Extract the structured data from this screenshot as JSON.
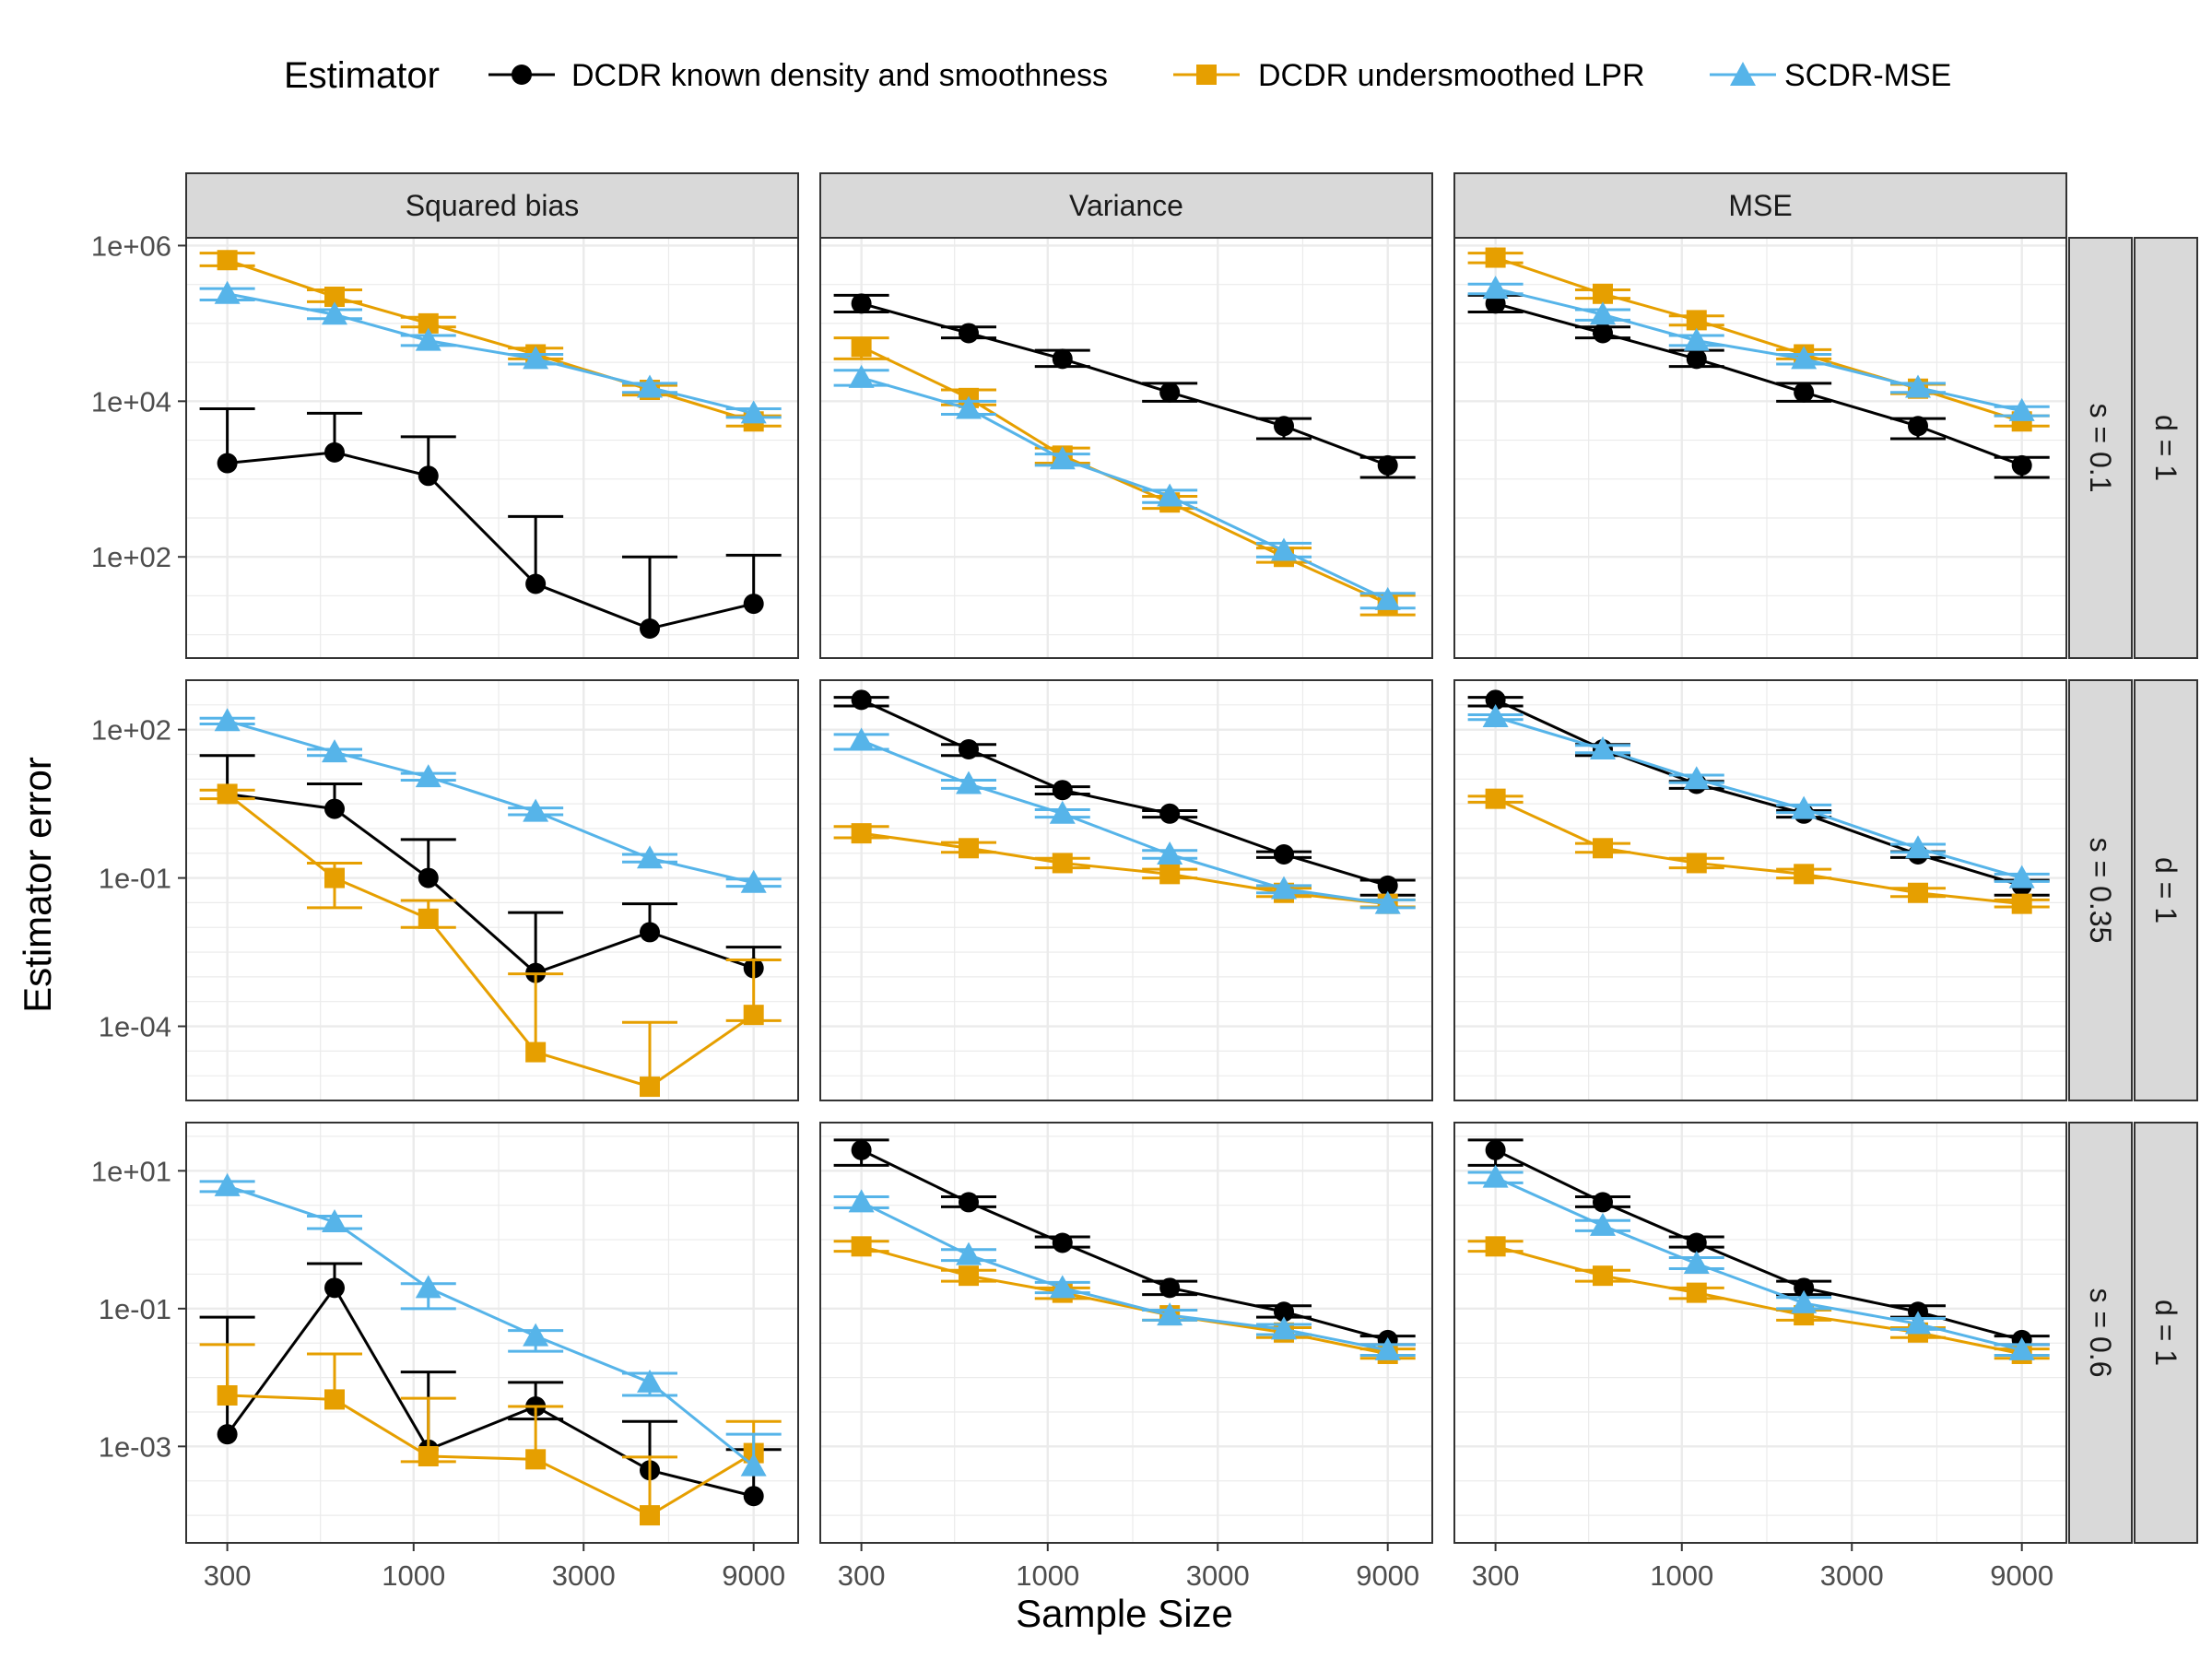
{
  "legend": {
    "title": "Estimator",
    "entries": [
      {
        "name": "DCDR known density and smoothness",
        "color": "#000000",
        "shape": "circle"
      },
      {
        "name": "DCDR undersmoothed LPR",
        "color": "#E69F00",
        "shape": "square"
      },
      {
        "name": "SCDR-MSE",
        "color": "#56B4E9",
        "shape": "triangle"
      }
    ]
  },
  "axes": {
    "xlabel": "Sample Size",
    "ylabel": "Estimator error",
    "x_ticks": [
      300,
      1000,
      3000,
      9000
    ],
    "x_tick_labels": [
      "300",
      "1000",
      "3000",
      "9000"
    ]
  },
  "chart_data": {
    "type": "line",
    "x_scale": "log10",
    "y_scale": "log10",
    "x": [
      300,
      600,
      1100,
      2200,
      4600,
      9000
    ],
    "xlim": [
      230,
      12000
    ],
    "columns": [
      "Squared bias",
      "Variance",
      "MSE"
    ],
    "rows": [
      {
        "label_s": "s = 0.1",
        "label_d": "d = 1",
        "ylim_log10": [
          0.7,
          6.1
        ],
        "y_ticks": [
          100.0,
          10000.0,
          1000000.0
        ],
        "y_tick_labels": [
          "1e+02",
          "1e+04",
          "1e+06"
        ]
      },
      {
        "label_s": "s = 0.35",
        "label_d": "d = 1",
        "ylim_log10": [
          -5.5,
          3.0
        ],
        "y_ticks": [
          0.0001,
          0.1,
          100.0
        ],
        "y_tick_labels": [
          "1e-04",
          "1e-01",
          "1e+02"
        ]
      },
      {
        "label_s": "s = 0.6",
        "label_d": "d = 1",
        "ylim_log10": [
          -4.4,
          1.7
        ],
        "y_ticks": [
          0.001,
          0.1,
          10.0
        ],
        "y_tick_labels": [
          "1e-03",
          "1e-01",
          "1e+01"
        ]
      }
    ],
    "panels": [
      {
        "row": 0,
        "col": 0,
        "series": [
          {
            "name": "DCDR known density and smoothness",
            "values": [
              1600,
              2200,
              1100,
              45,
              12,
              25
            ],
            "upper": [
              8000,
              7000,
              3500,
              330,
              100,
              105
            ],
            "lower": [
              null,
              null,
              null,
              null,
              null,
              null
            ]
          },
          {
            "name": "DCDR undersmoothed LPR",
            "values": [
              650000,
              220000,
              100000,
              40000,
              14000,
              5500
            ],
            "upper": [
              800000,
              270000,
              120000,
              48000,
              16000,
              6500
            ],
            "lower": [
              550000,
              190000,
              90000,
              35000,
              12000,
              4800
            ]
          },
          {
            "name": "SCDR-MSE",
            "values": [
              240000,
              130000,
              60000,
              35000,
              15000,
              7000
            ],
            "upper": [
              280000,
              150000,
              70000,
              40000,
              17000,
              8000
            ],
            "lower": [
              200000,
              115000,
              52000,
              30000,
              13000,
              6200
            ]
          }
        ]
      },
      {
        "row": 0,
        "col": 1,
        "series": [
          {
            "name": "DCDR known density and smoothness",
            "values": [
              180000,
              75000,
              35000,
              13000,
              4800,
              1500
            ],
            "upper": [
              230000,
              90000,
              45000,
              17000,
              6000,
              1900
            ],
            "lower": [
              140000,
              65000,
              28000,
              10000,
              3300,
              1050
            ]
          },
          {
            "name": "DCDR undersmoothed LPR",
            "values": [
              50000,
              11000,
              2000,
              500,
              100,
              25
            ],
            "upper": [
              65000,
              14000,
              2500,
              600,
              130,
              32
            ],
            "lower": [
              35000,
              9000,
              1600,
              420,
              85,
              18
            ]
          },
          {
            "name": "SCDR-MSE",
            "values": [
              20000,
              8000,
              1800,
              600,
              120,
              28
            ],
            "upper": [
              25000,
              10000,
              2100,
              720,
              150,
              34
            ],
            "lower": [
              16000,
              6800,
              1500,
              500,
              100,
              22
            ]
          }
        ]
      },
      {
        "row": 0,
        "col": 2,
        "series": [
          {
            "name": "DCDR known density and smoothness",
            "values": [
              180000,
              75000,
              35000,
              13000,
              4800,
              1500
            ],
            "upper": [
              230000,
              90000,
              45000,
              17000,
              6000,
              1900
            ],
            "lower": [
              140000,
              65000,
              28000,
              10000,
              3300,
              1050
            ]
          },
          {
            "name": "DCDR undersmoothed LPR",
            "values": [
              700000,
              240000,
              110000,
              40000,
              14500,
              5500
            ],
            "upper": [
              800000,
              270000,
              125000,
              46000,
              16500,
              6500
            ],
            "lower": [
              600000,
              210000,
              95000,
              35000,
              12500,
              4800
            ]
          },
          {
            "name": "SCDR-MSE",
            "values": [
              280000,
              130000,
              60000,
              35000,
              15000,
              7500
            ],
            "upper": [
              320000,
              150000,
              70000,
              40000,
              17000,
              8500
            ],
            "lower": [
              240000,
              110000,
              52000,
              30000,
              13000,
              6500
            ]
          }
        ]
      },
      {
        "row": 1,
        "col": 0,
        "series": [
          {
            "name": "DCDR known density and smoothness",
            "values": [
              5,
              2.5,
              0.1,
              0.0012,
              0.008,
              0.0015
            ],
            "upper": [
              30,
              8,
              0.6,
              0.02,
              0.03,
              0.004
            ],
            "lower": [
              null,
              null,
              null,
              null,
              null,
              null
            ]
          },
          {
            "name": "DCDR undersmoothed LPR",
            "values": [
              5,
              0.1,
              0.015,
              3e-05,
              6e-06,
              0.00017
            ],
            "upper": [
              6,
              0.2,
              0.035,
              0.00115,
              0.00012,
              0.0022
            ],
            "lower": [
              4,
              0.025,
              0.01,
              null,
              null,
              0.00013
            ]
          },
          {
            "name": "SCDR-MSE",
            "values": [
              150,
              35,
              11,
              2.2,
              0.25,
              0.08
            ],
            "upper": [
              170,
              40,
              13,
              2.6,
              0.3,
              0.095
            ],
            "lower": [
              130,
              30,
              9.5,
              1.9,
              0.21,
              0.068
            ]
          }
        ]
      },
      {
        "row": 1,
        "col": 1,
        "series": [
          {
            "name": "DCDR known density and smoothness",
            "values": [
              400,
              40,
              6,
              2,
              0.3,
              0.07
            ],
            "upper": [
              450,
              50,
              7,
              2.3,
              0.34,
              0.09
            ],
            "lower": [
              300,
              30,
              5,
              1.7,
              0.26,
              0.045
            ]
          },
          {
            "name": "DCDR undersmoothed LPR",
            "values": [
              0.8,
              0.4,
              0.2,
              0.12,
              0.05,
              0.03
            ],
            "upper": [
              1.1,
              0.52,
              0.25,
              0.15,
              0.062,
              0.036
            ],
            "lower": [
              0.65,
              0.33,
              0.16,
              0.1,
              0.042,
              0.026
            ]
          },
          {
            "name": "SCDR-MSE",
            "values": [
              60,
              8,
              2,
              0.3,
              0.06,
              0.03
            ],
            "upper": [
              80,
              9.5,
              2.4,
              0.36,
              0.07,
              0.036
            ],
            "lower": [
              40,
              6.5,
              1.7,
              0.25,
              0.05,
              0.025
            ]
          }
        ]
      },
      {
        "row": 1,
        "col": 2,
        "series": [
          {
            "name": "DCDR known density and smoothness",
            "values": [
              400,
              40,
              8,
              2,
              0.3,
              0.07
            ],
            "upper": [
              450,
              50,
              9,
              2.3,
              0.34,
              0.09
            ],
            "lower": [
              300,
              30,
              6.5,
              1.7,
              0.26,
              0.045
            ]
          },
          {
            "name": "DCDR undersmoothed LPR",
            "values": [
              4,
              0.4,
              0.2,
              0.12,
              0.05,
              0.03
            ],
            "upper": [
              4.5,
              0.5,
              0.25,
              0.15,
              0.062,
              0.036
            ],
            "lower": [
              3.4,
              0.33,
              0.16,
              0.1,
              0.042,
              0.026
            ]
          },
          {
            "name": "SCDR-MSE",
            "values": [
              180,
              40,
              10,
              2.5,
              0.4,
              0.1
            ],
            "upper": [
              200,
              48,
              12,
              3,
              0.48,
              0.12
            ],
            "lower": [
              160,
              34,
              8.5,
              2.1,
              0.33,
              0.085
            ]
          }
        ]
      },
      {
        "row": 2,
        "col": 0,
        "series": [
          {
            "name": "DCDR known density and smoothness",
            "values": [
              0.0015,
              0.2,
              0.0009,
              0.0038,
              0.00045,
              0.00019
            ],
            "upper": [
              0.075,
              0.45,
              0.012,
              0.0085,
              0.0023,
              0.0009
            ],
            "lower": [
              null,
              null,
              null,
              0.0025,
              null,
              null
            ]
          },
          {
            "name": "DCDR undersmoothed LPR",
            "values": [
              0.0055,
              0.0048,
              0.00072,
              0.00065,
              0.0001,
              0.0008
            ],
            "upper": [
              0.03,
              0.022,
              0.005,
              0.0038,
              0.0007,
              0.0023
            ],
            "lower": [
              null,
              null,
              0.0006,
              null,
              null,
              null
            ]
          },
          {
            "name": "SCDR-MSE",
            "values": [
              6,
              1.8,
              0.2,
              0.04,
              0.0085,
              0.00052
            ],
            "upper": [
              7,
              2.2,
              0.23,
              0.048,
              0.0115,
              0.0015
            ],
            "lower": [
              5,
              1.45,
              0.1,
              0.024,
              0.0055,
              null
            ]
          }
        ]
      },
      {
        "row": 2,
        "col": 1,
        "series": [
          {
            "name": "DCDR known density and smoothness",
            "values": [
              20,
              3.5,
              0.9,
              0.2,
              0.09,
              0.035
            ],
            "upper": [
              28,
              4.2,
              1.1,
              0.25,
              0.11,
              0.04
            ],
            "lower": [
              12,
              3,
              0.78,
              0.16,
              0.075,
              0.03
            ]
          },
          {
            "name": "DCDR undersmoothed LPR",
            "values": [
              0.8,
              0.3,
              0.17,
              0.08,
              0.045,
              0.022
            ],
            "upper": [
              0.95,
              0.36,
              0.2,
              0.095,
              0.053,
              0.026
            ],
            "lower": [
              0.68,
              0.25,
              0.14,
              0.068,
              0.038,
              0.019
            ]
          },
          {
            "name": "SCDR-MSE",
            "values": [
              3.5,
              0.6,
              0.2,
              0.08,
              0.05,
              0.025
            ],
            "upper": [
              4.2,
              0.72,
              0.24,
              0.095,
              0.059,
              0.03
            ],
            "lower": [
              2.9,
              0.5,
              0.17,
              0.068,
              0.042,
              0.021
            ]
          }
        ]
      },
      {
        "row": 2,
        "col": 2,
        "series": [
          {
            "name": "DCDR known density and smoothness",
            "values": [
              20,
              3.5,
              0.9,
              0.2,
              0.09,
              0.035
            ],
            "upper": [
              28,
              4.2,
              1.1,
              0.25,
              0.11,
              0.04
            ],
            "lower": [
              12,
              3,
              0.78,
              0.16,
              0.075,
              0.03
            ]
          },
          {
            "name": "DCDR undersmoothed LPR",
            "values": [
              0.8,
              0.3,
              0.17,
              0.08,
              0.045,
              0.022
            ],
            "upper": [
              0.95,
              0.36,
              0.2,
              0.095,
              0.053,
              0.026
            ],
            "lower": [
              0.68,
              0.25,
              0.14,
              0.068,
              0.038,
              0.019
            ]
          },
          {
            "name": "SCDR-MSE",
            "values": [
              8,
              1.6,
              0.45,
              0.12,
              0.06,
              0.025
            ],
            "upper": [
              9.5,
              1.9,
              0.55,
              0.145,
              0.072,
              0.03
            ],
            "lower": [
              6.7,
              1.35,
              0.38,
              0.1,
              0.05,
              0.021
            ]
          }
        ]
      }
    ]
  }
}
